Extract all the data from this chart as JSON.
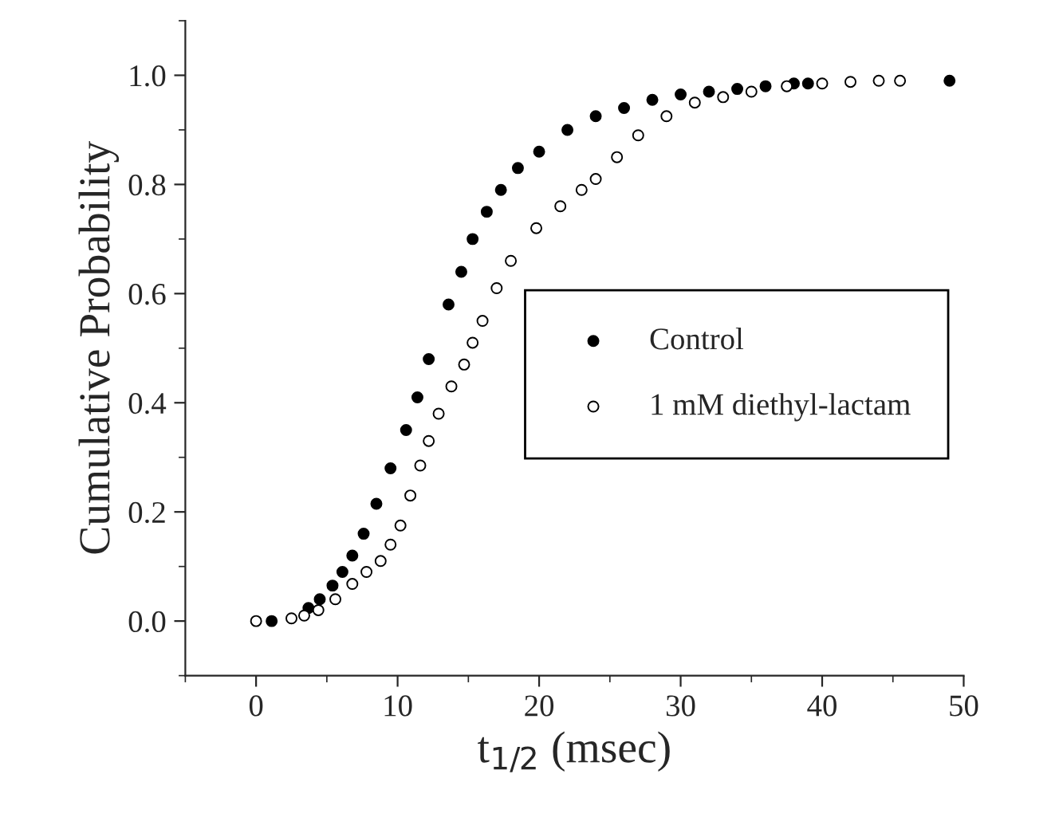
{
  "chart_data": {
    "type": "scatter",
    "xlabel": "t$_{1/2}$ (msec)",
    "ylabel": "Cumulative Probability",
    "xlim": [
      -5,
      50
    ],
    "ylim": [
      -0.1,
      1.1
    ],
    "xticks": [
      0,
      10,
      20,
      30,
      40,
      50
    ],
    "yticks": [
      {
        "value": 0,
        "label": "0.0"
      },
      {
        "value": 0.2,
        "label": "0.2"
      },
      {
        "value": 0.4,
        "label": "0.4"
      },
      {
        "value": 0.6,
        "label": "0.6"
      },
      {
        "value": 0.8,
        "label": "0.8"
      },
      {
        "value": 1,
        "label": "1.0"
      }
    ],
    "marker": "circle",
    "legend": "right",
    "grid": false,
    "series": [
      {
        "name": "Control",
        "color": "#000000",
        "x": [
          1.1,
          3.7,
          4.5,
          5.4,
          6.1,
          6.8,
          7.6,
          8.5,
          9.5,
          10.6,
          11.4,
          12.2,
          13.6,
          14.5,
          15.3,
          16.3,
          17.3,
          18.5,
          20,
          22,
          24,
          26,
          28,
          30,
          32,
          34,
          36,
          38,
          39,
          49
        ],
        "values": [
          0,
          0.024,
          0.04,
          0.065,
          0.09,
          0.12,
          0.16,
          0.215,
          0.28,
          0.35,
          0.41,
          0.48,
          0.58,
          0.64,
          0.7,
          0.75,
          0.79,
          0.83,
          0.86,
          0.9,
          0.925,
          0.94,
          0.955,
          0.965,
          0.97,
          0.975,
          0.98,
          0.985,
          0.985,
          0.99
        ]
      },
      {
        "name": "1 mM diethyl-lactam",
        "color": "#ffffff",
        "x": [
          0,
          2.5,
          3.4,
          4.4,
          5.6,
          6.8,
          7.8,
          8.8,
          9.5,
          10.2,
          10.9,
          11.6,
          12.2,
          12.9,
          13.8,
          14.7,
          15.3,
          16,
          17,
          18,
          19.8,
          21.5,
          23,
          24,
          25.5,
          27,
          29,
          31,
          33,
          35,
          37.5,
          40,
          42,
          44,
          45.5
        ],
        "values": [
          0,
          0.005,
          0.01,
          0.02,
          0.04,
          0.068,
          0.09,
          0.11,
          0.14,
          0.175,
          0.23,
          0.285,
          0.33,
          0.38,
          0.43,
          0.47,
          0.51,
          0.55,
          0.61,
          0.66,
          0.72,
          0.76,
          0.79,
          0.81,
          0.85,
          0.89,
          0.925,
          0.95,
          0.96,
          0.97,
          0.98,
          0.985,
          0.988,
          0.99,
          0.99
        ]
      }
    ]
  }
}
